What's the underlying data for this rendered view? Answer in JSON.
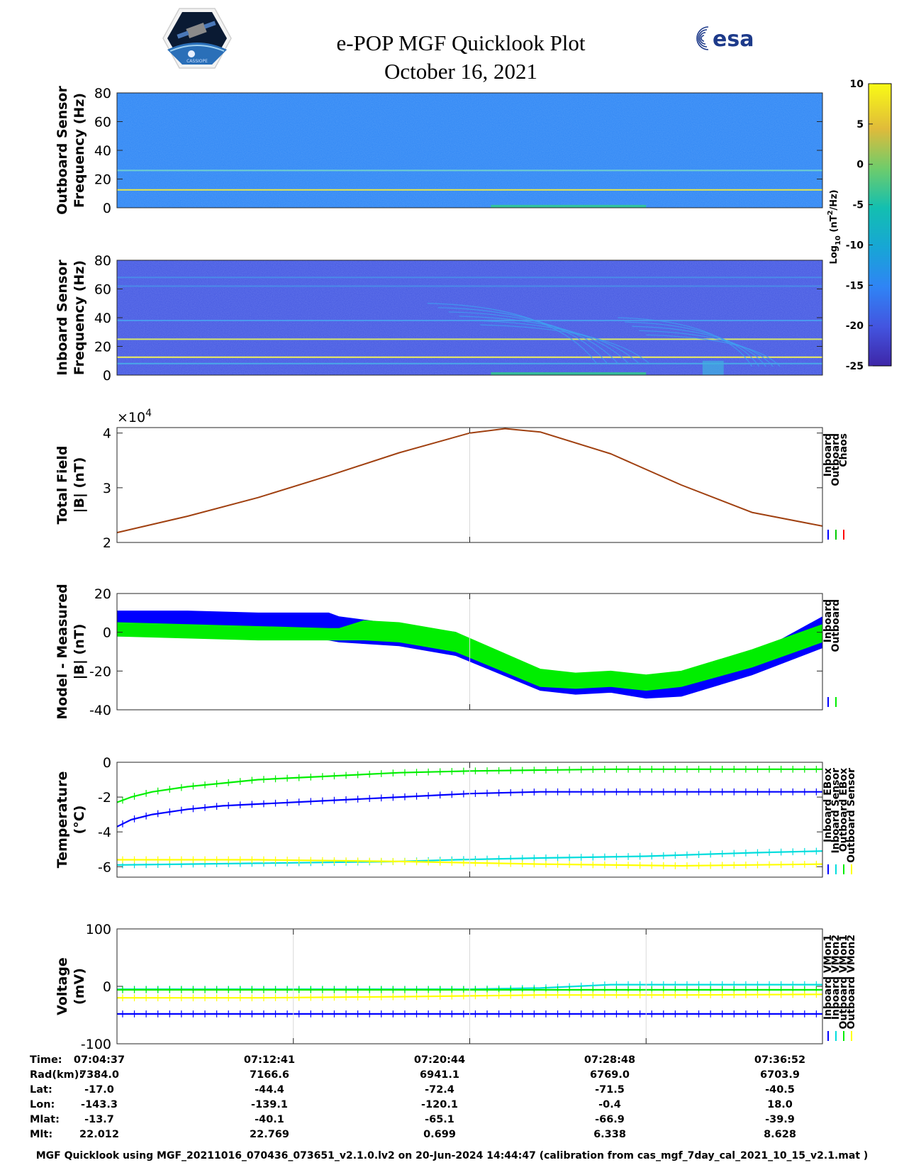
{
  "header": {
    "title_line1": "e-POP MGF Quicklook Plot",
    "title_line2": "October 16, 2021",
    "left_logo": "epop-cassiope-mission-patch",
    "right_logo": "esa-logo",
    "right_logo_text": "esa",
    "left_logo_text": "CASSIOPE"
  },
  "colorbar": {
    "label_main": "Log",
    "label_sub": "10",
    "label_unit": " (nT",
    "label_sup": "2",
    "label_end": "/Hz)",
    "ticks": [
      "10",
      "5",
      "0",
      "-5",
      "-10",
      "-15",
      "-20",
      "-25"
    ],
    "range": [
      -25,
      10
    ],
    "colormap": "parula"
  },
  "chart_data": [
    {
      "type": "heatmap",
      "ylabel_line1": "Outboard Sensor",
      "ylabel_line2": "Frequency (Hz)",
      "ylim": [
        0,
        80
      ],
      "yticks": [
        "0",
        "20",
        "40",
        "60",
        "80"
      ],
      "background_level": -15,
      "lines_hz": [
        {
          "hz": 12.5,
          "color": "#e8e84a"
        },
        {
          "hz": 26,
          "color": "#6fd0d0"
        }
      ]
    },
    {
      "type": "heatmap",
      "ylabel_line1": "Inboard Sensor",
      "ylabel_line2": "Frequency (Hz)",
      "ylim": [
        0,
        80
      ],
      "yticks": [
        "0",
        "20",
        "40",
        "60",
        "80"
      ],
      "background_level": -20,
      "lines_hz": [
        {
          "hz": 12.5,
          "color": "#f0f05a"
        },
        {
          "hz": 25,
          "color": "#d8e86a"
        },
        {
          "hz": 38,
          "color": "#4a9af0"
        },
        {
          "hz": 62,
          "color": "#4a8ae8"
        },
        {
          "hz": 68,
          "color": "#4a8ae8"
        },
        {
          "hz": 8,
          "color": "#4aa8e8"
        }
      ]
    },
    {
      "type": "line",
      "ylabel_line1": "Total Field",
      "ylabel_line2": "|B| (nT)",
      "ylim": [
        2,
        4.1
      ],
      "yticks": [
        "2",
        "3",
        "4"
      ],
      "exponent_label_base": "×10",
      "exponent_label_power": "4",
      "legend": [
        "Inboard",
        "Outboard",
        "Chaos"
      ],
      "legend_colors": [
        "#0000ff",
        "#00cc00",
        "#ff0000"
      ],
      "series": [
        {
          "name": "Chaos",
          "x": [
            0,
            0.1,
            0.2,
            0.3,
            0.4,
            0.5,
            0.55,
            0.6,
            0.7,
            0.8,
            0.9,
            1.0
          ],
          "values": [
            2.18,
            2.48,
            2.82,
            3.22,
            3.64,
            4.0,
            4.08,
            4.02,
            3.62,
            3.05,
            2.55,
            2.3
          ]
        }
      ]
    },
    {
      "type": "area",
      "ylabel_line1": "Model - Measured",
      "ylabel_line2": "|B| (nT)",
      "ylim": [
        -40,
        20
      ],
      "yticks": [
        "-40",
        "-20",
        "0",
        "20"
      ],
      "legend": [
        "Inboard",
        "Outboard"
      ],
      "legend_colors": [
        "#0000ff",
        "#00ee00"
      ],
      "series": [
        {
          "name": "Inboard",
          "x": [
            0,
            0.1,
            0.2,
            0.3,
            0.315,
            0.4,
            0.48,
            0.6,
            0.65,
            0.7,
            0.75,
            0.8,
            0.9,
            1.0
          ],
          "upper": [
            11,
            11,
            10,
            10,
            8,
            4,
            0,
            -22,
            -24,
            -22,
            -24,
            -22,
            -12,
            8
          ],
          "lower": [
            -2,
            -2,
            -2,
            -4,
            -5,
            -7,
            -12,
            -30,
            -32,
            -31,
            -34,
            -33,
            -22,
            -8
          ]
        },
        {
          "name": "Outboard",
          "x": [
            0,
            0.1,
            0.2,
            0.3,
            0.315,
            0.35,
            0.4,
            0.48,
            0.6,
            0.65,
            0.7,
            0.75,
            0.8,
            0.9,
            1.0
          ],
          "upper": [
            5,
            4,
            3,
            2,
            2,
            6,
            5,
            0,
            -19,
            -21,
            -20,
            -22,
            -20,
            -9,
            4
          ],
          "lower": [
            -2,
            -3,
            -4,
            -4,
            -4,
            -4,
            -5,
            -10,
            -28,
            -29,
            -28,
            -30,
            -28,
            -18,
            -5
          ]
        }
      ]
    },
    {
      "type": "line",
      "ylabel_line1": "Temperature",
      "ylabel_line2": "(°C)",
      "ylim": [
        -6.6,
        0
      ],
      "yticks": [
        "-6",
        "-4",
        "-2",
        "0"
      ],
      "legend": [
        "Inboard EBox",
        "Inboard Sensor",
        "Outboard EBox",
        "Outboard Sensor"
      ],
      "legend_colors": [
        "#0000ff",
        "#00dddd",
        "#00ee00",
        "#ffff00"
      ],
      "series": [
        {
          "name": "Inboard EBox",
          "color": "#0000ff",
          "x": [
            0,
            0.02,
            0.05,
            0.1,
            0.15,
            0.2,
            0.3,
            0.4,
            0.5,
            0.6,
            0.8,
            1.0
          ],
          "values": [
            -3.7,
            -3.3,
            -3.0,
            -2.7,
            -2.5,
            -2.4,
            -2.2,
            -2.0,
            -1.8,
            -1.7,
            -1.7,
            -1.7
          ]
        },
        {
          "name": "Inboard Sensor",
          "color": "#00dddd",
          "x": [
            0,
            0.2,
            0.4,
            0.48,
            0.6,
            0.75,
            0.9,
            1.0
          ],
          "values": [
            -5.9,
            -5.8,
            -5.7,
            -5.6,
            -5.5,
            -5.4,
            -5.2,
            -5.1
          ]
        },
        {
          "name": "Outboard EBox",
          "color": "#00ee00",
          "x": [
            0,
            0.02,
            0.05,
            0.1,
            0.15,
            0.2,
            0.3,
            0.4,
            0.5,
            0.7,
            1.0
          ],
          "values": [
            -2.3,
            -2.0,
            -1.7,
            -1.4,
            -1.2,
            -1.0,
            -0.8,
            -0.6,
            -0.5,
            -0.4,
            -0.4
          ]
        },
        {
          "name": "Outboard Sensor",
          "color": "#ffff00",
          "x": [
            0,
            0.2,
            0.4,
            0.6,
            0.8,
            1.0
          ],
          "values": [
            -5.6,
            -5.6,
            -5.7,
            -5.85,
            -5.95,
            -5.85
          ]
        }
      ]
    },
    {
      "type": "line",
      "ylabel_line1": "Voltage",
      "ylabel_line2": "(mV)",
      "ylim": [
        -100,
        100
      ],
      "yticks": [
        "-100",
        "0",
        "100"
      ],
      "legend": [
        "Inboard VMon1",
        "Inboard VMon2",
        "Outboard VMon1",
        "Outboard VMon2"
      ],
      "legend_colors": [
        "#0000ff",
        "#00dddd",
        "#00ee00",
        "#ffff00"
      ],
      "series": [
        {
          "name": "Inboard VMon1",
          "color": "#0000ff",
          "x": [
            0,
            0.02,
            1.0
          ],
          "values": [
            -48,
            -48,
            -48
          ]
        },
        {
          "name": "Inboard VMon2",
          "color": "#00dddd",
          "x": [
            0,
            0.5,
            0.6,
            0.7,
            1.0
          ],
          "values": [
            -5,
            -5,
            -3,
            3,
            3
          ]
        },
        {
          "name": "Outboard VMon1",
          "color": "#00ee00",
          "x": [
            0,
            1.0
          ],
          "values": [
            -6,
            -6
          ]
        },
        {
          "name": "Outboard VMon2",
          "color": "#ffff00",
          "x": [
            0,
            0.2,
            0.4,
            0.6,
            0.8,
            1.0
          ],
          "values": [
            -20,
            -20,
            -18,
            -15,
            -15,
            -14
          ]
        }
      ]
    }
  ],
  "time_table": {
    "row_labels": [
      "Time:",
      "Rad(km):",
      "Lat:",
      "Lon:",
      "Mlat:",
      "Mlt:"
    ],
    "columns": [
      [
        "07:04:37",
        "7384.0",
        "-17.0",
        "-143.3",
        "-13.7",
        "22.012"
      ],
      [
        "07:12:41",
        "7166.6",
        "-44.4",
        "-139.1",
        "-40.1",
        "22.769"
      ],
      [
        "07:20:44",
        "6941.1",
        "-72.4",
        "-120.1",
        "-65.1",
        "0.699"
      ],
      [
        "07:28:48",
        "6769.0",
        "-71.5",
        "-0.4",
        "-66.9",
        "6.338"
      ],
      [
        "07:36:52",
        "6703.9",
        "-40.5",
        "18.0",
        "-39.9",
        "8.628"
      ]
    ]
  },
  "footer": "MGF Quicklook using MGF_20211016_070436_073651_v2.1.0.lv2 on 20-Jun-2024 14:44:47 (calibration from cas_mgf_7day_cal_2021_10_15_v2.1.mat )"
}
